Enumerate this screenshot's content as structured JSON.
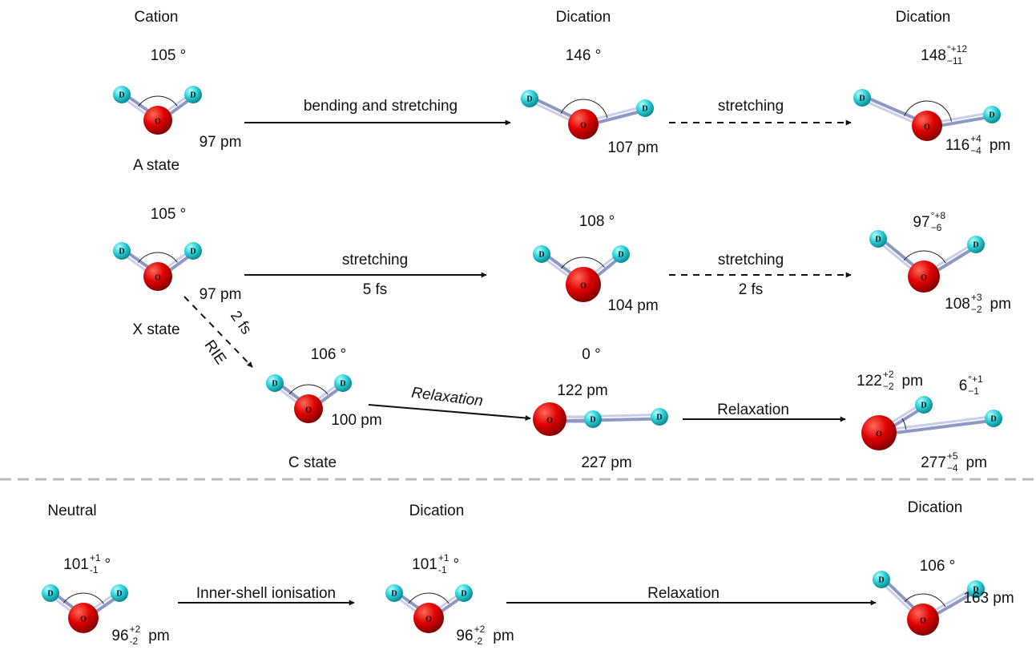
{
  "atom_labels": {
    "oxygen": "O",
    "deuterium": "D"
  },
  "molecules": [
    {
      "header": "Cation",
      "angle": "105 °",
      "bond": "97 pm",
      "state": "A state"
    },
    {
      "header": "Dication",
      "angle": "146 °",
      "bond": "107 pm"
    },
    {
      "header": "Dication",
      "angle": {
        "main": "148",
        "sup": "°+12",
        "sub": "−11"
      },
      "bond": {
        "main": "116",
        "sup": "+4",
        "sub": "−4",
        "unit": "pm"
      }
    },
    {
      "angle": "105 °",
      "bond": "97 pm",
      "state": "X state"
    },
    {
      "angle": "108 °",
      "bond": "104 pm"
    },
    {
      "angle": {
        "main": "97",
        "sup": "°+8",
        "sub": "−6"
      },
      "bond": {
        "main": "108",
        "sup": "+3",
        "sub": "−2",
        "unit": "pm"
      }
    },
    {
      "angle": "106 °",
      "bond": "100 pm",
      "state": "C state"
    },
    {
      "angle": "0 °",
      "bond": "122 pm",
      "bond2": "227 pm"
    },
    {
      "angle": {
        "main": "6",
        "sup": "°+1",
        "sub": "−1"
      },
      "bond": {
        "main": "122",
        "sup": "+2",
        "sub": "−2",
        "unit": "pm"
      },
      "bond2": {
        "main": "277",
        "sup": "+5",
        "sub": "−4",
        "unit": "pm"
      }
    },
    {
      "header": "Neutral",
      "angle": {
        "main": "101",
        "sup": "+1",
        "sub": "-1",
        "unit": "°"
      },
      "bond": {
        "main": "96",
        "sup": "+2",
        "sub": "-2",
        "unit": "pm"
      }
    },
    {
      "header": "Dication",
      "angle": {
        "main": "101",
        "sup": "+1",
        "sub": "-1",
        "unit": "°"
      },
      "bond": {
        "main": "96",
        "sup": "+2",
        "sub": "-2",
        "unit": "pm"
      }
    },
    {
      "header": "Dication",
      "angle": "106 °",
      "bond": "163 pm"
    }
  ],
  "arrows": [
    {
      "labels": [
        "bending and stretching"
      ]
    },
    {
      "labels": [
        "stretching"
      ]
    },
    {
      "labels": [
        "stretching",
        "5 fs"
      ]
    },
    {
      "labels": [
        "stretching",
        "2 fs"
      ]
    },
    {
      "labels": [
        "2 fs",
        "RIE"
      ]
    },
    {
      "labels": [
        "Relaxation"
      ]
    },
    {
      "labels": [
        "Relaxation"
      ]
    },
    {
      "labels": [
        "Inner-shell ionisation"
      ]
    },
    {
      "labels": [
        "Relaxation"
      ]
    }
  ]
}
